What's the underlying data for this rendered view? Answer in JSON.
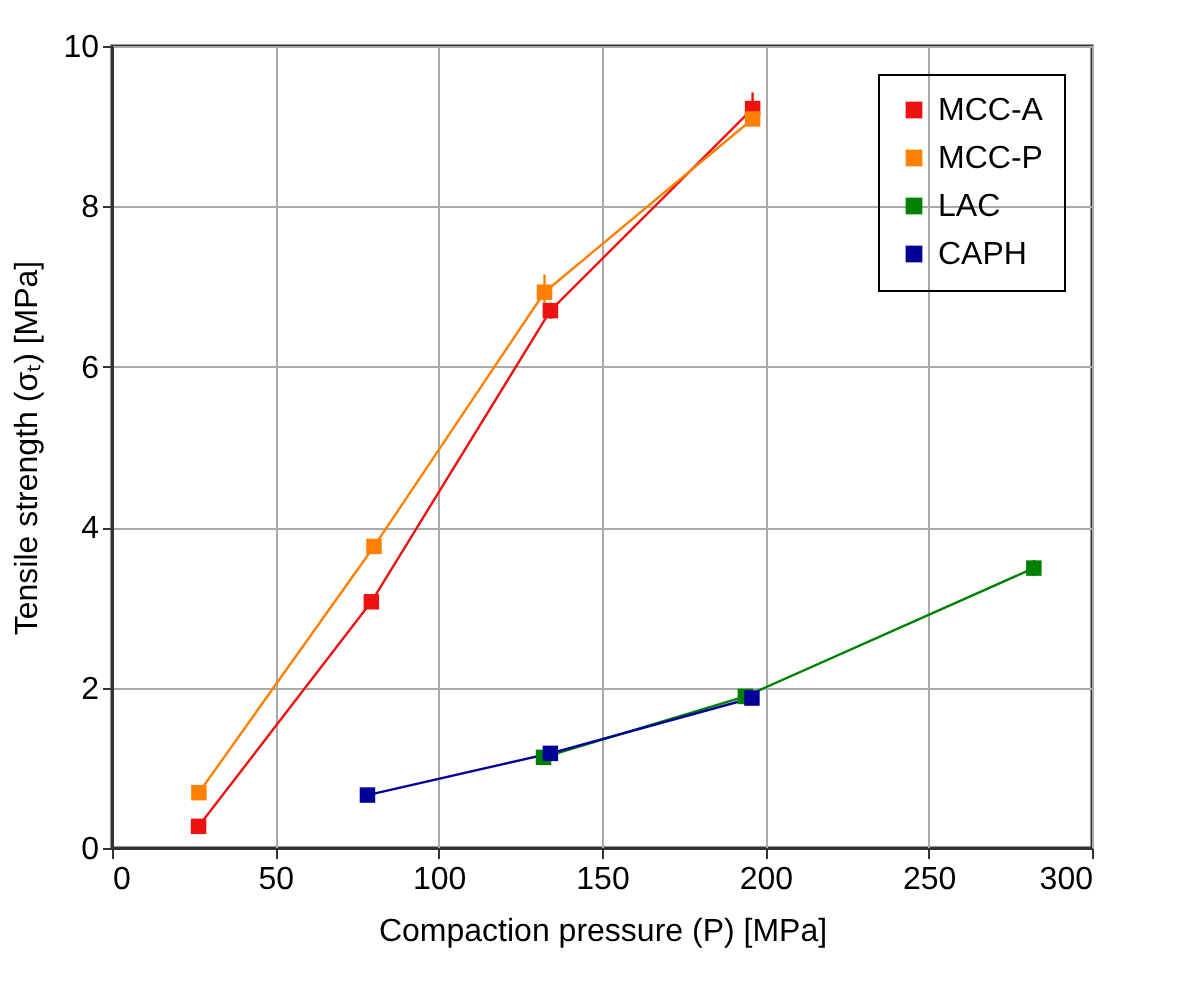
{
  "chart_data": {
    "type": "line",
    "xlabel": "Compaction pressure (P) [MPa]",
    "ylabel": "Tensile strength (σₜ) [MPa]",
    "xlim": [
      0,
      300
    ],
    "xticks": [
      0,
      50,
      100,
      150,
      200,
      250,
      300
    ],
    "ylim": [
      0,
      10
    ],
    "yticks": [
      0,
      2,
      4,
      6,
      8,
      10
    ],
    "grid": true,
    "legend": "top right",
    "marker": "square",
    "series": [
      {
        "name": "MCC-A",
        "color": "#ee1111",
        "x": [
          26.5,
          79.4,
          134.2,
          196.1
        ],
        "values": [
          0.27,
          3.07,
          6.7,
          9.22
        ],
        "errors": [
          null,
          null,
          0.1,
          0.2
        ]
      },
      {
        "name": "MCC-P",
        "color": "#ff8000",
        "x": [
          26.6,
          80.2,
          132.4,
          196.1
        ],
        "values": [
          0.69,
          3.76,
          6.93,
          9.09
        ],
        "errors": [
          null,
          null,
          0.22,
          null
        ]
      },
      {
        "name": "LAC",
        "color": "#008000",
        "x": [
          132.1,
          193.9,
          282.2
        ],
        "values": [
          1.13,
          1.89,
          3.49
        ],
        "errors": [
          null,
          null,
          0.1
        ]
      },
      {
        "name": "CAPH",
        "color": "#000099",
        "x": [
          78.2,
          134.2,
          195.9
        ],
        "values": [
          0.66,
          1.18,
          1.87
        ]
      }
    ]
  }
}
